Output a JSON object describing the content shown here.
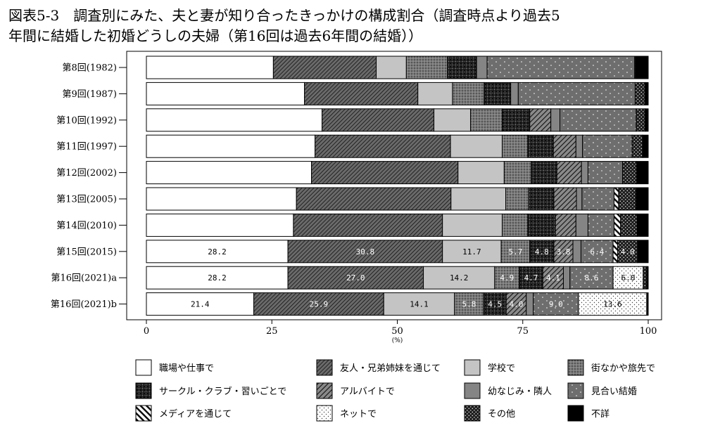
{
  "chart_data": {
    "type": "bar",
    "orientation": "horizontal",
    "stacked": true,
    "title_line1": "図表5-3　調査別にみた、夫と妻が知り合ったきっかけの構成割合（調査時点より過去5",
    "title_line2": "年間に結婚した初婚どうしの夫婦（第16回は過去6年間の結婚））",
    "xlabel": "(%)",
    "xlim": [
      0,
      100
    ],
    "xticks": [
      0,
      25,
      50,
      75,
      100
    ],
    "legend_position": "bottom",
    "categories": [
      "第8回(1982)",
      "第9回(1987)",
      "第10回(1992)",
      "第11回(1997)",
      "第12回(2002)",
      "第13回(2005)",
      "第14回(2010)",
      "第15回(2015)",
      "第16回(2021)a",
      "第16回(2021)b"
    ],
    "series": [
      {
        "name": "職場や仕事で",
        "values": [
          25.3,
          31.5,
          35.0,
          33.6,
          32.9,
          29.9,
          29.3,
          28.2,
          28.2,
          21.4
        ],
        "labels": [
          "",
          "",
          "",
          "",
          "",
          "",
          "",
          "28.2",
          "28.2",
          "21.4"
        ]
      },
      {
        "name": "友人・兄弟姉妹を通じて",
        "values": [
          20.5,
          22.6,
          22.3,
          27.0,
          29.2,
          30.8,
          29.7,
          30.8,
          27.0,
          25.9
        ],
        "labels": [
          "",
          "",
          "",
          "",
          "",
          "",
          "",
          "30.8",
          "27.0",
          "25.9"
        ]
      },
      {
        "name": "学校で",
        "values": [
          6.0,
          6.9,
          7.3,
          10.3,
          9.2,
          10.9,
          11.9,
          11.7,
          14.2,
          14.1
        ],
        "labels": [
          "",
          "",
          "",
          "",
          "",
          "",
          "",
          "11.7",
          "14.2",
          "14.1"
        ]
      },
      {
        "name": "街なかや旅先で",
        "values": [
          8.2,
          6.3,
          6.3,
          5.1,
          5.4,
          4.6,
          5.1,
          5.7,
          4.9,
          5.8
        ],
        "labels": [
          "",
          "",
          "",
          "",
          "",
          "",
          "",
          "5.7",
          "4.9",
          "5.8"
        ]
      },
      {
        "name": "サークル・クラブ・習いごとで",
        "values": [
          5.8,
          5.3,
          5.5,
          5.1,
          5.1,
          5.0,
          5.5,
          4.8,
          4.7,
          4.5
        ],
        "labels": [
          "",
          "",
          "",
          "",
          "",
          "",
          "",
          "4.8",
          "4.7",
          "4.5"
        ]
      },
      {
        "name": "アルバイトで",
        "values": [
          0.0,
          0.0,
          4.2,
          4.5,
          4.9,
          4.5,
          4.1,
          3.8,
          4.1,
          4.0
        ],
        "labels": [
          "",
          "",
          "",
          "",
          "",
          "",
          "",
          "3.8",
          "4.1",
          "4.0"
        ]
      },
      {
        "name": "幼なじみ・隣人",
        "values": [
          2.1,
          1.5,
          1.8,
          1.3,
          1.3,
          1.1,
          2.4,
          1.6,
          1.3,
          1.4
        ],
        "labels": [
          "",
          "",
          "",
          "",
          "",
          "",
          "",
          "",
          "",
          ""
        ]
      },
      {
        "name": "見合い結婚",
        "values": [
          29.4,
          23.3,
          15.2,
          9.9,
          6.9,
          6.4,
          5.2,
          6.4,
          8.6,
          9.0
        ],
        "labels": [
          "",
          "",
          "",
          "",
          "",
          "",
          "",
          "6.4",
          "8.6",
          "9.0"
        ]
      },
      {
        "name": "メディアを通じて",
        "values": [
          0.0,
          0.0,
          0.0,
          0.0,
          0.0,
          0.9,
          1.3,
          0.9,
          0.0,
          0.0
        ],
        "labels": [
          "",
          "",
          "",
          "",
          "",
          "",
          "",
          "",
          "",
          ""
        ]
      },
      {
        "name": "ネットで",
        "values": [
          0.0,
          0.0,
          0.0,
          0.0,
          0.0,
          0.0,
          0.0,
          0.0,
          6.0,
          13.6
        ],
        "labels": [
          "",
          "",
          "",
          "",
          "",
          "",
          "",
          "",
          "6.0",
          "13.6"
        ]
      },
      {
        "name": "その他",
        "values": [
          0.2,
          2.0,
          1.8,
          2.1,
          2.8,
          3.5,
          3.3,
          4.0,
          0.7,
          0.0
        ],
        "labels": [
          "",
          "",
          "",
          "",
          "",
          "",
          "",
          "4.0",
          "",
          ""
        ]
      },
      {
        "name": "不詳",
        "values": [
          2.5,
          0.6,
          0.6,
          1.1,
          2.3,
          2.4,
          2.2,
          2.1,
          0.3,
          0.3
        ],
        "labels": [
          "",
          "",
          "",
          "",
          "",
          "",
          "",
          "",
          "",
          ""
        ]
      }
    ]
  }
}
